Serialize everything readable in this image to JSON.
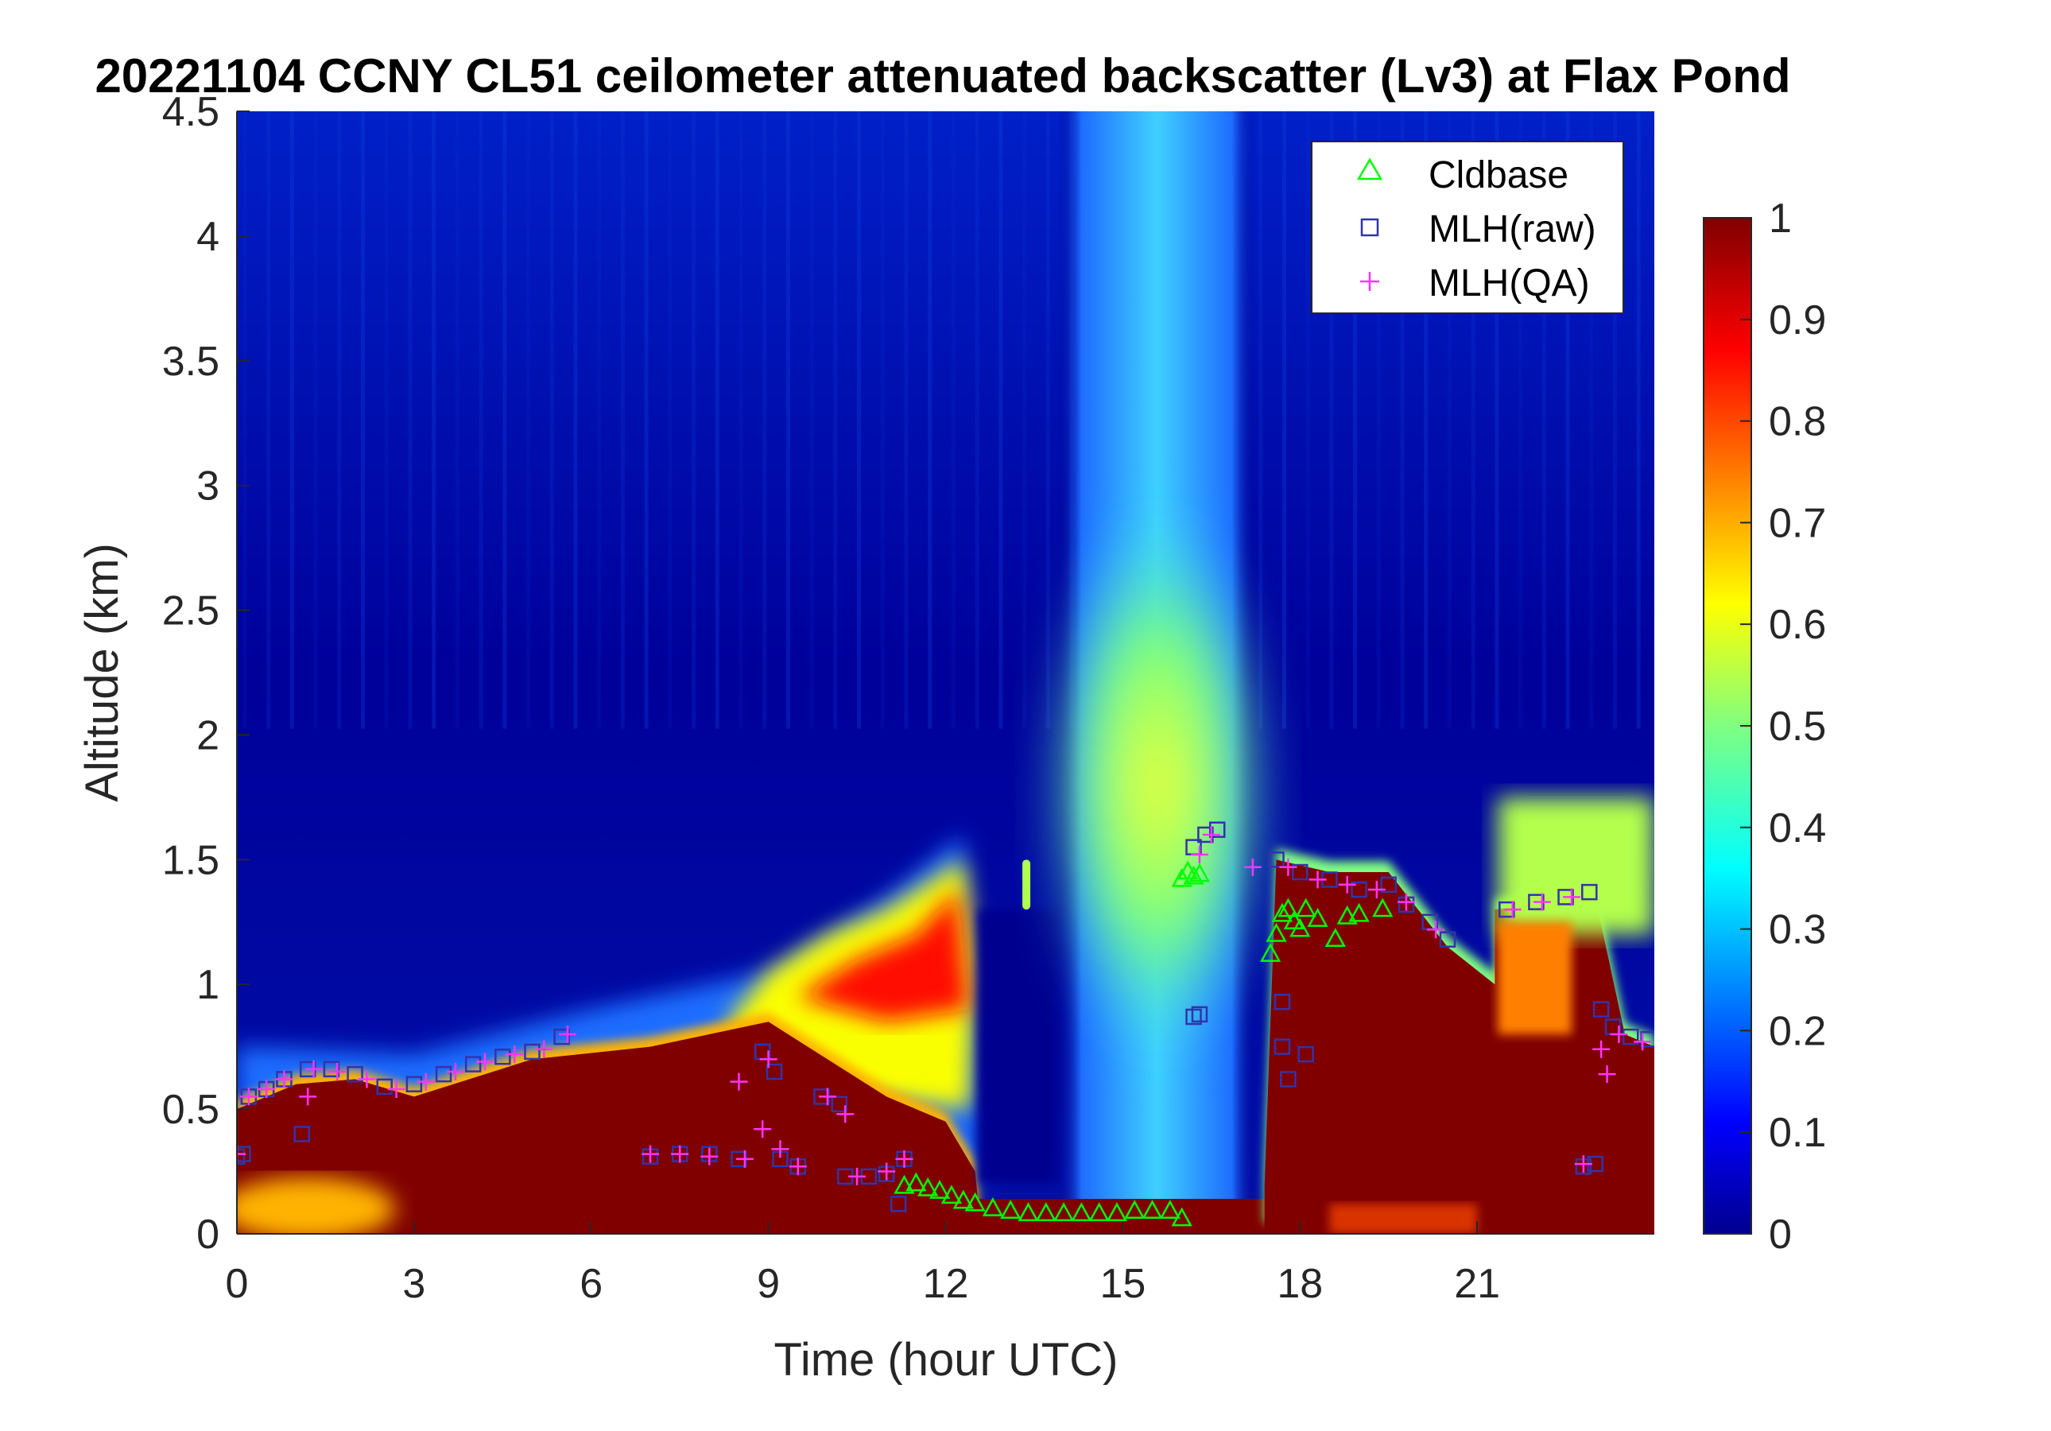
{
  "chart_data": {
    "type": "heatmap",
    "title": "20221104 CCNY CL51 ceilometer attenuated backscatter (Lv3) at Flax Pond",
    "xlabel": "Time (hour UTC)",
    "ylabel": "Altitude (km)",
    "xlim": [
      0,
      24
    ],
    "ylim": [
      0,
      4.5
    ],
    "xticks": [
      0,
      3,
      6,
      9,
      12,
      15,
      18,
      21
    ],
    "xtick_labels": [
      "0",
      "3",
      "6",
      "9",
      "12",
      "15",
      "18",
      "21"
    ],
    "yticks": [
      0,
      0.5,
      1,
      1.5,
      2,
      2.5,
      3,
      3.5,
      4,
      4.5
    ],
    "ytick_labels": [
      "0",
      "0.5",
      "1",
      "1.5",
      "2",
      "2.5",
      "3",
      "3.5",
      "4",
      "4.5"
    ],
    "colorbar": {
      "colormap": "jet",
      "range": [
        0,
        1
      ],
      "ticks": [
        0,
        0.1,
        0.2,
        0.3,
        0.4,
        0.5,
        0.6,
        0.7,
        0.8,
        0.9,
        1
      ],
      "tick_labels": [
        "0",
        "0.1",
        "0.2",
        "0.3",
        "0.4",
        "0.5",
        "0.6",
        "0.7",
        "0.8",
        "0.9",
        "1"
      ]
    },
    "legend": {
      "placement": "top-right",
      "entries": [
        {
          "label": "Cldbase",
          "marker": "triangle",
          "color": "#00ff00"
        },
        {
          "label": "MLH(raw)",
          "marker": "square",
          "color": "#3333aa"
        },
        {
          "label": "MLH(QA)",
          "marker": "plus",
          "color": "#ff33ff"
        }
      ]
    },
    "backscatter_regions": [
      {
        "name": "nighttime boundary layer",
        "top_km": [
          [
            0,
            0.5
          ],
          [
            1,
            0.6
          ],
          [
            2,
            0.62
          ],
          [
            3,
            0.55
          ],
          [
            5,
            0.7
          ],
          [
            7,
            0.75
          ],
          [
            9,
            0.85
          ],
          [
            10,
            0.7
          ],
          [
            11,
            0.55
          ],
          [
            12,
            0.45
          ],
          [
            12.5,
            0.25
          ]
        ],
        "level": 1.0
      },
      {
        "name": "residual layer",
        "top_km": [
          [
            9,
            0.9
          ],
          [
            10,
            1.1
          ],
          [
            11,
            1.2
          ],
          [
            12,
            1.4
          ],
          [
            12.4,
            1.2
          ]
        ],
        "level": 0.85
      },
      {
        "name": "afternoon mixed layer",
        "top_km": [
          [
            17.4,
            0.2
          ],
          [
            17.6,
            1.5
          ],
          [
            18.5,
            1.45
          ],
          [
            19.5,
            1.45
          ],
          [
            20.5,
            1.15
          ],
          [
            21.3,
            1.0
          ],
          [
            21.3,
            1.3
          ],
          [
            23,
            1.35
          ],
          [
            23.5,
            0.8
          ],
          [
            24,
            0.75
          ]
        ],
        "level": 1.0
      },
      {
        "name": "midday aerosol plume",
        "time_range_h": [
          13.9,
          17.2
        ],
        "peak_km": 1.6,
        "level": 0.6
      }
    ],
    "cldbase_km": [
      [
        11.3,
        0.19
      ],
      [
        11.5,
        0.2
      ],
      [
        11.7,
        0.18
      ],
      [
        11.9,
        0.17
      ],
      [
        12.1,
        0.15
      ],
      [
        12.3,
        0.13
      ],
      [
        12.5,
        0.12
      ],
      [
        12.8,
        0.1
      ],
      [
        13.1,
        0.09
      ],
      [
        13.4,
        0.08
      ],
      [
        13.7,
        0.08
      ],
      [
        14.0,
        0.08
      ],
      [
        14.3,
        0.08
      ],
      [
        14.6,
        0.08
      ],
      [
        14.9,
        0.08
      ],
      [
        15.2,
        0.09
      ],
      [
        15.5,
        0.09
      ],
      [
        15.8,
        0.09
      ],
      [
        16.0,
        0.06
      ],
      [
        16.0,
        1.42
      ],
      [
        16.1,
        1.45
      ],
      [
        16.2,
        1.43
      ],
      [
        16.3,
        1.44
      ],
      [
        17.5,
        1.12
      ],
      [
        17.6,
        1.2
      ],
      [
        17.7,
        1.28
      ],
      [
        17.8,
        1.3
      ],
      [
        17.9,
        1.25
      ],
      [
        18.0,
        1.22
      ],
      [
        18.1,
        1.3
      ],
      [
        18.3,
        1.26
      ],
      [
        18.6,
        1.18
      ],
      [
        18.8,
        1.27
      ],
      [
        19.0,
        1.28
      ],
      [
        19.4,
        1.3
      ]
    ],
    "mlh_raw_km": [
      [
        0,
        0.31
      ],
      [
        0.1,
        0.32
      ],
      [
        0.2,
        0.55
      ],
      [
        0.5,
        0.58
      ],
      [
        0.8,
        0.62
      ],
      [
        1.1,
        0.4
      ],
      [
        1.2,
        0.66
      ],
      [
        1.6,
        0.66
      ],
      [
        2.0,
        0.64
      ],
      [
        2.5,
        0.59
      ],
      [
        3.0,
        0.6
      ],
      [
        3.5,
        0.64
      ],
      [
        4.0,
        0.68
      ],
      [
        4.5,
        0.71
      ],
      [
        5.0,
        0.73
      ],
      [
        5.5,
        0.79
      ],
      [
        7.0,
        0.31
      ],
      [
        7.5,
        0.32
      ],
      [
        8.0,
        0.32
      ],
      [
        8.5,
        0.3
      ],
      [
        8.9,
        0.73
      ],
      [
        9.1,
        0.65
      ],
      [
        9.2,
        0.3
      ],
      [
        9.5,
        0.27
      ],
      [
        9.9,
        0.55
      ],
      [
        10.2,
        0.52
      ],
      [
        10.3,
        0.23
      ],
      [
        10.7,
        0.23
      ],
      [
        11.0,
        0.24
      ],
      [
        11.2,
        0.12
      ],
      [
        11.3,
        0.3
      ],
      [
        16.2,
        1.55
      ],
      [
        16.4,
        1.6
      ],
      [
        16.6,
        1.62
      ],
      [
        16.2,
        0.87
      ],
      [
        16.3,
        0.88
      ],
      [
        17.6,
        1.5
      ],
      [
        17.7,
        0.93
      ],
      [
        17.7,
        0.75
      ],
      [
        17.8,
        0.62
      ],
      [
        18.0,
        1.45
      ],
      [
        18.1,
        0.72
      ],
      [
        18.5,
        1.42
      ],
      [
        19.0,
        1.38
      ],
      [
        19.5,
        1.4
      ],
      [
        19.8,
        1.32
      ],
      [
        20.2,
        1.25
      ],
      [
        20.5,
        1.18
      ],
      [
        21.5,
        1.3
      ],
      [
        22.0,
        1.33
      ],
      [
        22.5,
        1.35
      ],
      [
        22.9,
        1.37
      ],
      [
        22.8,
        0.27
      ],
      [
        23.0,
        0.28
      ],
      [
        23.1,
        0.9
      ],
      [
        23.3,
        0.83
      ],
      [
        23.6,
        0.79
      ],
      [
        23.9,
        0.78
      ]
    ],
    "mlh_qa_km": [
      [
        0,
        0.32
      ],
      [
        0.2,
        0.55
      ],
      [
        0.5,
        0.58
      ],
      [
        0.8,
        0.62
      ],
      [
        1.2,
        0.55
      ],
      [
        1.3,
        0.66
      ],
      [
        1.7,
        0.65
      ],
      [
        2.2,
        0.62
      ],
      [
        2.7,
        0.58
      ],
      [
        3.2,
        0.61
      ],
      [
        3.7,
        0.65
      ],
      [
        4.2,
        0.69
      ],
      [
        4.7,
        0.72
      ],
      [
        5.2,
        0.74
      ],
      [
        5.6,
        0.8
      ],
      [
        7.0,
        0.32
      ],
      [
        7.5,
        0.32
      ],
      [
        8.0,
        0.31
      ],
      [
        8.5,
        0.61
      ],
      [
        8.6,
        0.3
      ],
      [
        8.9,
        0.42
      ],
      [
        9.0,
        0.7
      ],
      [
        9.2,
        0.34
      ],
      [
        9.5,
        0.27
      ],
      [
        10.0,
        0.55
      ],
      [
        10.3,
        0.48
      ],
      [
        10.5,
        0.23
      ],
      [
        11.0,
        0.25
      ],
      [
        11.3,
        0.3
      ],
      [
        16.3,
        1.52
      ],
      [
        16.5,
        1.6
      ],
      [
        17.2,
        1.47
      ],
      [
        17.8,
        1.47
      ],
      [
        18.3,
        1.42
      ],
      [
        18.8,
        1.4
      ],
      [
        19.3,
        1.38
      ],
      [
        19.8,
        1.33
      ],
      [
        20.3,
        1.22
      ],
      [
        21.6,
        1.3
      ],
      [
        22.1,
        1.33
      ],
      [
        22.6,
        1.35
      ],
      [
        22.8,
        0.28
      ],
      [
        23.1,
        0.74
      ],
      [
        23.2,
        0.64
      ],
      [
        23.4,
        0.8
      ],
      [
        23.8,
        0.77
      ]
    ]
  }
}
